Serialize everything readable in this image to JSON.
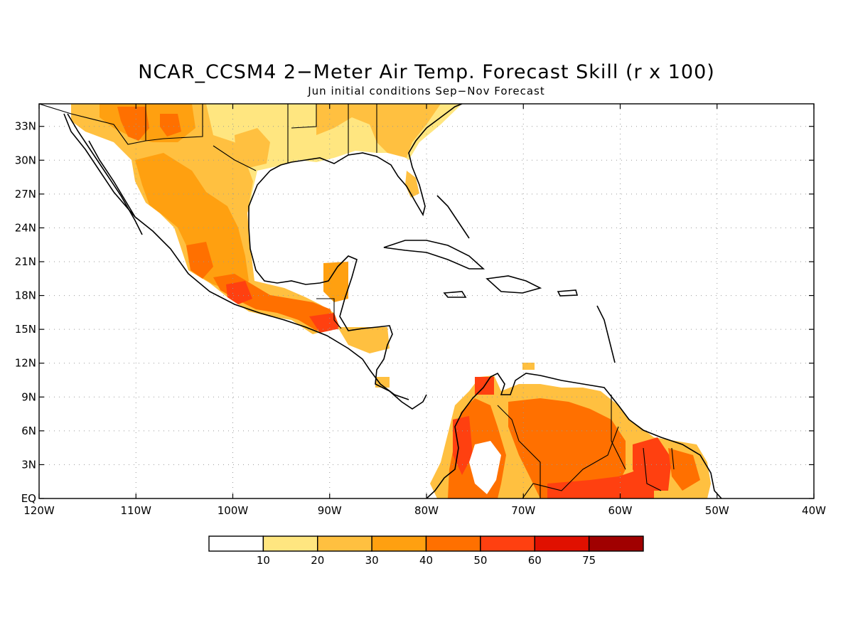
{
  "title": "NCAR_CCSM4 2−Meter Air Temp. Forecast Skill (r x 100)",
  "subtitle": "Jun initial conditions  Sep−Nov Forecast",
  "map": {
    "lon_range": [
      -120,
      -40
    ],
    "lat_range": [
      0,
      35
    ],
    "lat_ticks": [
      {
        "value": 33,
        "label": "33N"
      },
      {
        "value": 30,
        "label": "30N"
      },
      {
        "value": 27,
        "label": "27N"
      },
      {
        "value": 24,
        "label": "24N"
      },
      {
        "value": 21,
        "label": "21N"
      },
      {
        "value": 18,
        "label": "18N"
      },
      {
        "value": 15,
        "label": "15N"
      },
      {
        "value": 12,
        "label": "12N"
      },
      {
        "value": 9,
        "label": "9N"
      },
      {
        "value": 6,
        "label": "6N"
      },
      {
        "value": 3,
        "label": "3N"
      },
      {
        "value": 0,
        "label": "EQ"
      }
    ],
    "lon_ticks": [
      {
        "value": -120,
        "label": "120W"
      },
      {
        "value": -110,
        "label": "110W"
      },
      {
        "value": -100,
        "label": "100W"
      },
      {
        "value": -90,
        "label": "90W"
      },
      {
        "value": -80,
        "label": "80W"
      },
      {
        "value": -70,
        "label": "70W"
      },
      {
        "value": -60,
        "label": "60W"
      },
      {
        "value": -50,
        "label": "50W"
      },
      {
        "value": -40,
        "label": "40W"
      }
    ],
    "grid": "dotted"
  },
  "colorbar": {
    "boundaries": [
      "10",
      "20",
      "30",
      "40",
      "50",
      "60",
      "75"
    ],
    "colors": [
      "#ffffff",
      "#ffe680",
      "#ffc040",
      "#ffa010",
      "#ff7000",
      "#ff4010",
      "#e01000",
      "#a00000"
    ]
  },
  "colors": {
    "bin_10_20": "#ffe680",
    "bin_20_30": "#ffc040",
    "bin_30_40": "#ffa010",
    "bin_40_50": "#ff7000",
    "bin_50_60": "#ff4010",
    "bin_60_75": "#e01000",
    "bin_75_up": "#a00000",
    "coastline": "#000000"
  }
}
